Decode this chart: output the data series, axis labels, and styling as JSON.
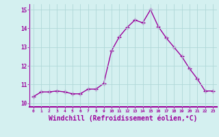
{
  "x": [
    0,
    1,
    2,
    3,
    4,
    5,
    6,
    7,
    8,
    9,
    10,
    11,
    12,
    13,
    14,
    15,
    16,
    17,
    18,
    19,
    20,
    21,
    22,
    23
  ],
  "y": [
    10.35,
    10.6,
    10.6,
    10.65,
    10.6,
    10.5,
    10.5,
    10.75,
    10.75,
    11.05,
    12.8,
    13.55,
    14.05,
    14.45,
    14.3,
    15.0,
    14.1,
    13.5,
    13.0,
    12.5,
    11.85,
    11.3,
    10.65,
    10.65
  ],
  "line_color": "#9b009b",
  "marker": "+",
  "marker_size": 4,
  "linewidth": 1.0,
  "xlabel": "Windchill (Refroidissement éolien,°C)",
  "xlabel_fontsize": 7,
  "xtick_labels": [
    "0",
    "1",
    "2",
    "3",
    "4",
    "5",
    "6",
    "7",
    "8",
    "9",
    "10",
    "11",
    "12",
    "13",
    "14",
    "15",
    "16",
    "17",
    "18",
    "19",
    "20",
    "21",
    "22",
    "23"
  ],
  "ytick_values": [
    10,
    11,
    12,
    13,
    14,
    15
  ],
  "ylim": [
    9.8,
    15.3
  ],
  "xlim": [
    -0.5,
    23.5
  ],
  "background_color": "#d4f0f0",
  "grid_color": "#b0d8d8",
  "tick_color": "#9b009b",
  "label_color": "#9b009b",
  "spine_color": "#9b009b"
}
